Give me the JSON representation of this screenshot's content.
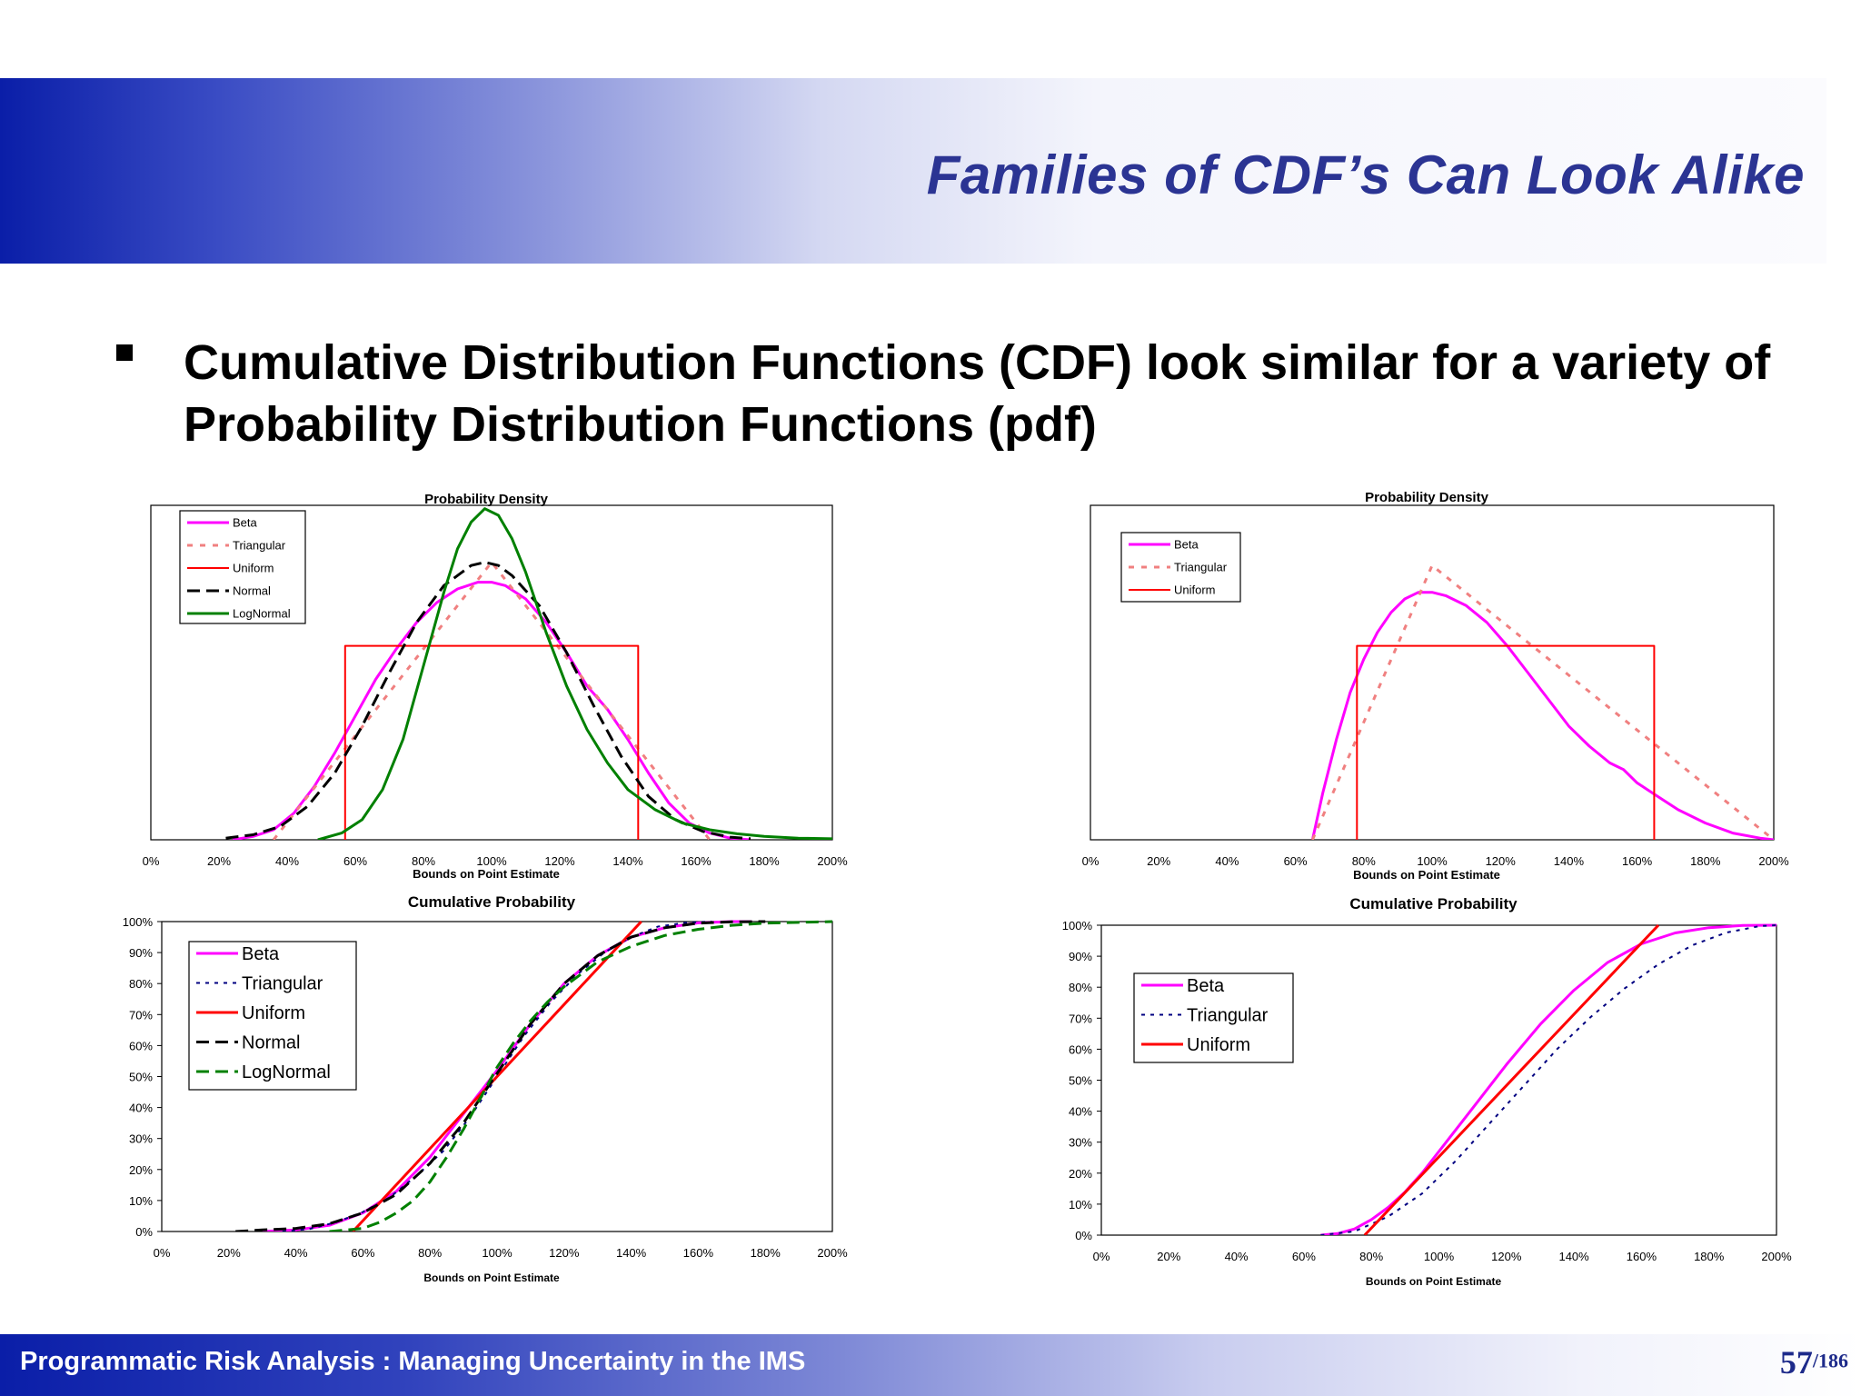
{
  "slide": {
    "title": "Families of CDF’s Can Look Alike",
    "bullet": "Cumulative Distribution Functions (CDF) look similar for a variety of Probability Distribution Functions (pdf)"
  },
  "footer": {
    "text": "Programmatic Risk Analysis : Managing Uncertainty in the IMS",
    "page": "57",
    "total": "/186"
  },
  "colors": {
    "title": "#2b3493",
    "band_dark": "#0a1ea8",
    "beta": "#ff00ff",
    "triangular_pdf": "#f08080",
    "triangular_cdf": "#000080",
    "uniform": "#ff0000",
    "normal": "#000000",
    "lognormal": "#008000"
  },
  "chart_data": [
    {
      "id": "pdf-left",
      "type": "line",
      "title": "Probability Density",
      "xlabel": "Bounds on Point Estimate",
      "ylabel": "",
      "x_ticks": [
        "0%",
        "20%",
        "40%",
        "60%",
        "80%",
        "100%",
        "120%",
        "140%",
        "160%",
        "180%",
        "200%"
      ],
      "y_ticks": [],
      "xlim": [
        0,
        200
      ],
      "ylim": [
        0,
        1
      ],
      "legend_placement": "top-left",
      "legend_font": 13,
      "series": [
        {
          "name": "Beta",
          "color": "#ff00ff",
          "dash": "",
          "width": 3,
          "x": [
            24,
            30,
            36,
            42,
            48,
            54,
            60,
            66,
            72,
            78,
            84,
            90,
            96,
            100,
            104,
            110,
            116,
            122,
            128,
            134,
            140,
            146,
            152,
            158,
            164,
            170,
            176
          ],
          "y": [
            0,
            0.01,
            0.03,
            0.08,
            0.16,
            0.26,
            0.37,
            0.48,
            0.57,
            0.65,
            0.71,
            0.75,
            0.77,
            0.77,
            0.76,
            0.72,
            0.65,
            0.56,
            0.46,
            0.39,
            0.3,
            0.2,
            0.11,
            0.05,
            0.02,
            0.005,
            0
          ]
        },
        {
          "name": "Triangular",
          "color": "#f08080",
          "dash": "6,8",
          "width": 3,
          "x": [
            36,
            100,
            164
          ],
          "y": [
            0,
            0.83,
            0
          ]
        },
        {
          "name": "Uniform",
          "color": "#ff0000",
          "dash": "",
          "width": 2,
          "x": [
            57,
            57,
            143,
            143
          ],
          "y": [
            0,
            0.58,
            0.58,
            0
          ]
        },
        {
          "name": "Normal",
          "color": "#000000",
          "dash": "14,7",
          "width": 3,
          "x": [
            22,
            30,
            38,
            46,
            54,
            62,
            70,
            78,
            86,
            94,
            98,
            102,
            106,
            114,
            122,
            130,
            138,
            146,
            154,
            162,
            170,
            176
          ],
          "y": [
            0.005,
            0.015,
            0.04,
            0.1,
            0.2,
            0.34,
            0.5,
            0.65,
            0.76,
            0.82,
            0.83,
            0.82,
            0.79,
            0.7,
            0.56,
            0.4,
            0.25,
            0.13,
            0.06,
            0.025,
            0.008,
            0.003
          ]
        },
        {
          "name": "LogNormal",
          "color": "#008000",
          "dash": "",
          "width": 3,
          "x": [
            49,
            56,
            62,
            68,
            74,
            80,
            86,
            90,
            94,
            98,
            102,
            106,
            110,
            116,
            122,
            128,
            134,
            140,
            148,
            156,
            164,
            172,
            180,
            190,
            200
          ],
          "y": [
            0,
            0.02,
            0.06,
            0.15,
            0.3,
            0.52,
            0.74,
            0.87,
            0.95,
            0.99,
            0.97,
            0.9,
            0.8,
            0.62,
            0.46,
            0.33,
            0.23,
            0.15,
            0.09,
            0.05,
            0.03,
            0.018,
            0.01,
            0.005,
            0.003
          ]
        }
      ]
    },
    {
      "id": "pdf-right",
      "type": "line",
      "title": "Probability Density",
      "xlabel": "Bounds on Point Estimate",
      "ylabel": "",
      "x_ticks": [
        "0%",
        "20%",
        "40%",
        "60%",
        "80%",
        "100%",
        "120%",
        "140%",
        "160%",
        "180%",
        "200%"
      ],
      "y_ticks": [],
      "xlim": [
        0,
        200
      ],
      "ylim": [
        0,
        1
      ],
      "legend_placement": "top-left",
      "legend_font": 13,
      "series": [
        {
          "name": "Beta",
          "color": "#ff00ff",
          "dash": "",
          "width": 3,
          "x": [
            65,
            68,
            72,
            76,
            80,
            84,
            88,
            92,
            96,
            100,
            104,
            110,
            116,
            122,
            128,
            134,
            140,
            146,
            152,
            156,
            160,
            166,
            172,
            180,
            188,
            196,
            200
          ],
          "y": [
            0,
            0.14,
            0.3,
            0.44,
            0.54,
            0.62,
            0.68,
            0.72,
            0.74,
            0.74,
            0.73,
            0.7,
            0.65,
            0.58,
            0.5,
            0.42,
            0.34,
            0.28,
            0.23,
            0.21,
            0.17,
            0.13,
            0.09,
            0.05,
            0.02,
            0.005,
            0
          ]
        },
        {
          "name": "Triangular",
          "color": "#f08080",
          "dash": "6,8",
          "width": 3,
          "x": [
            65,
            100,
            200
          ],
          "y": [
            0,
            0.82,
            0
          ]
        },
        {
          "name": "Uniform",
          "color": "#ff0000",
          "dash": "",
          "width": 2,
          "x": [
            78,
            78,
            165,
            165
          ],
          "y": [
            0,
            0.58,
            0.58,
            0
          ]
        }
      ]
    },
    {
      "id": "cdf-left",
      "type": "line",
      "title": "Cumulative Probability",
      "xlabel": "Bounds on Point Estimate",
      "ylabel": "",
      "x_ticks": [
        "0%",
        "20%",
        "40%",
        "60%",
        "80%",
        "100%",
        "120%",
        "140%",
        "160%",
        "180%",
        "200%"
      ],
      "y_ticks": [
        "0%",
        "10%",
        "20%",
        "30%",
        "40%",
        "50%",
        "60%",
        "70%",
        "80%",
        "90%",
        "100%"
      ],
      "xlim": [
        0,
        200
      ],
      "ylim": [
        0,
        100
      ],
      "grid": false,
      "legend_placement": "top-left",
      "legend_font": 20,
      "series": [
        {
          "name": "Beta",
          "color": "#ff00ff",
          "dash": "",
          "width": 3,
          "x": [
            30,
            40,
            50,
            60,
            70,
            80,
            90,
            100,
            110,
            120,
            130,
            140,
            150,
            160,
            170,
            176
          ],
          "y": [
            0,
            0.5,
            2,
            6,
            13,
            24,
            38,
            52,
            67,
            80,
            89,
            95,
            98,
            99.6,
            100,
            100
          ]
        },
        {
          "name": "Triangular",
          "color": "#000080",
          "dash": "4,6",
          "width": 2,
          "x": [
            36,
            44,
            52,
            60,
            68,
            76,
            84,
            92,
            100,
            108,
            116,
            124,
            132,
            140,
            148,
            156,
            164
          ],
          "y": [
            0,
            0.8,
            3,
            6.3,
            11,
            18,
            26,
            37,
            50,
            63,
            74,
            83,
            90,
            95,
            98.4,
            99.6,
            100
          ]
        },
        {
          "name": "Uniform",
          "color": "#ff0000",
          "dash": "",
          "width": 3,
          "x": [
            57,
            143
          ],
          "y": [
            0,
            100
          ]
        },
        {
          "name": "Normal",
          "color": "#000000",
          "dash": "14,7",
          "width": 3,
          "x": [
            22,
            30,
            40,
            50,
            60,
            70,
            80,
            90,
            100,
            110,
            120,
            130,
            140,
            150,
            160,
            170,
            180
          ],
          "y": [
            0,
            0.5,
            1,
            2.5,
            6,
            12,
            22,
            35,
            51,
            67,
            80,
            89,
            95,
            98,
            99.5,
            99.9,
            100
          ]
        },
        {
          "name": "LogNormal",
          "color": "#008000",
          "dash": "14,7",
          "width": 3,
          "x": [
            50,
            60,
            65,
            70,
            75,
            80,
            85,
            90,
            95,
            100,
            105,
            110,
            115,
            120,
            130,
            140,
            150,
            160,
            170,
            180,
            200
          ],
          "y": [
            0,
            1,
            3,
            6,
            10,
            16,
            24,
            33,
            43,
            53,
            61,
            68,
            74,
            79,
            87,
            92,
            95.5,
            97.5,
            98.8,
            99.5,
            100
          ]
        }
      ]
    },
    {
      "id": "cdf-right",
      "type": "line",
      "title": "Cumulative Probability",
      "xlabel": "Bounds on Point Estimate",
      "ylabel": "",
      "x_ticks": [
        "0%",
        "20%",
        "40%",
        "60%",
        "80%",
        "100%",
        "120%",
        "140%",
        "160%",
        "180%",
        "200%"
      ],
      "y_ticks": [
        "0%",
        "10%",
        "20%",
        "30%",
        "40%",
        "50%",
        "60%",
        "70%",
        "80%",
        "90%",
        "100%"
      ],
      "xlim": [
        0,
        200
      ],
      "ylim": [
        0,
        100
      ],
      "grid": false,
      "legend_placement": "middle-left",
      "legend_font": 20,
      "series": [
        {
          "name": "Beta",
          "color": "#ff00ff",
          "dash": "",
          "width": 3,
          "x": [
            65,
            70,
            75,
            80,
            85,
            90,
            95,
            100,
            110,
            120,
            130,
            140,
            150,
            160,
            170,
            180,
            190,
            200
          ],
          "y": [
            0,
            0.5,
            2,
            5,
            9,
            14,
            20,
            27,
            41,
            55,
            68,
            79,
            88,
            94,
            97.5,
            99.2,
            99.9,
            100
          ]
        },
        {
          "name": "Triangular",
          "color": "#000080",
          "dash": "4,6",
          "width": 2,
          "x": [
            65,
            75,
            85,
            95,
            105,
            115,
            125,
            135,
            145,
            155,
            165,
            175,
            185,
            195,
            200
          ],
          "y": [
            0,
            1.2,
            6,
            13.4,
            24,
            36,
            48,
            60,
            70.4,
            79.6,
            87.4,
            93.5,
            97.6,
            99.7,
            100
          ]
        },
        {
          "name": "Uniform",
          "color": "#ff0000",
          "dash": "",
          "width": 3,
          "x": [
            78,
            165
          ],
          "y": [
            0,
            100
          ]
        }
      ]
    }
  ]
}
